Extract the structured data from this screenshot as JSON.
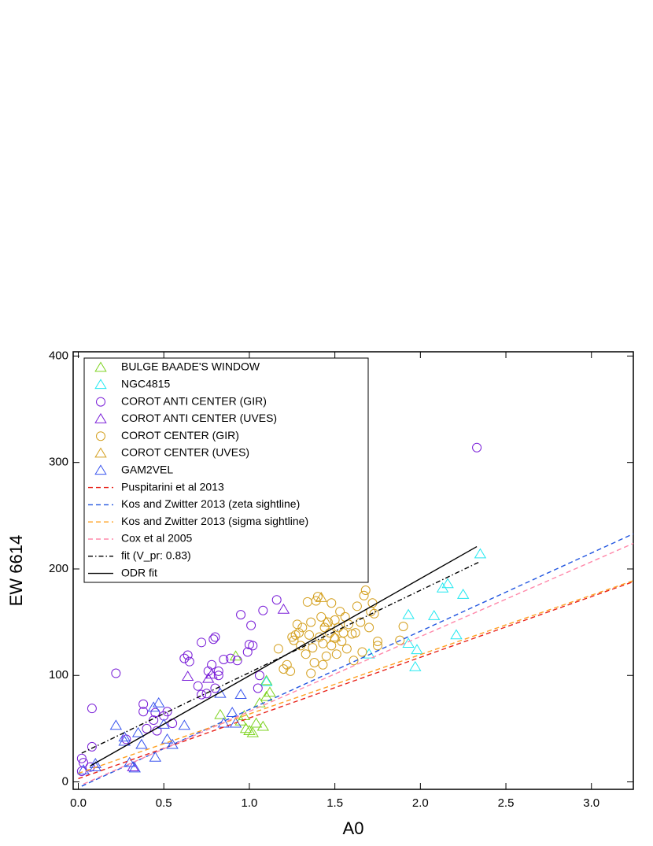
{
  "chart_data": {
    "type": "scatter",
    "xlabel": "A0",
    "ylabel": "EW 6614",
    "xlim": [
      -0.03,
      3.245
    ],
    "ylim": [
      -7,
      404
    ],
    "xticks": [
      {
        "value": 0,
        "label": "0.0"
      },
      0.5,
      {
        "value": 1,
        "label": "1.0"
      },
      1.5,
      {
        "value": 2,
        "label": "2.0"
      },
      2.5,
      {
        "value": 3,
        "label": "3.0"
      }
    ],
    "yticks": [
      0,
      100,
      200,
      300,
      400
    ],
    "legend": "upper left",
    "series": [
      {
        "name": "BULGE BAADE'S WINDOW",
        "color": "#7ed321",
        "marker": "triangle",
        "x": [
          0.83,
          0.92,
          0.97,
          0.98,
          1.0,
          1.02,
          1.04,
          1.06,
          1.08,
          1.1,
          1.12,
          1.1,
          0.95
        ],
        "values": [
          63,
          118,
          62,
          50,
          48,
          46,
          55,
          74,
          52,
          80,
          84,
          95,
          57
        ]
      },
      {
        "name": "NGC4815",
        "color": "#22e8f0",
        "marker": "triangle",
        "x": [
          1.1,
          1.7,
          1.93,
          1.97,
          1.98,
          2.08,
          2.13,
          2.16,
          2.21,
          2.25,
          2.35,
          1.93
        ],
        "values": [
          94,
          120,
          157,
          108,
          124,
          156,
          182,
          186,
          138,
          176,
          214,
          130
        ]
      },
      {
        "name": "COROT ANTI CENTER (GIR)",
        "color": "#7a1fd8",
        "marker": "circle",
        "x": [
          0.02,
          0.02,
          0.03,
          0.08,
          0.08,
          0.07,
          0.22,
          0.28,
          0.38,
          0.38,
          0.4,
          0.44,
          0.45,
          0.46,
          0.5,
          0.52,
          0.55,
          0.62,
          0.64,
          0.65,
          0.7,
          0.72,
          0.72,
          0.76,
          0.78,
          0.79,
          0.8,
          0.8,
          0.82,
          0.82,
          0.85,
          0.89,
          0.95,
          0.99,
          1.0,
          1.01,
          1.02,
          1.06,
          1.08,
          1.05,
          1.16,
          2.33,
          0.93,
          0.75
        ],
        "values": [
          22,
          10,
          18,
          69,
          33,
          14,
          102,
          40,
          73,
          66,
          50,
          58,
          65,
          48,
          62,
          66,
          55,
          116,
          119,
          113,
          90,
          131,
          82,
          104,
          110,
          134,
          136,
          88,
          100,
          104,
          115,
          116,
          157,
          122,
          129,
          147,
          128,
          100,
          161,
          88,
          171,
          314,
          114,
          83
        ]
      },
      {
        "name": "COROT ANTI CENTER (UVES)",
        "color": "#7a1fd8",
        "marker": "triangle",
        "x": [
          0.64,
          0.76,
          0.78,
          1.2,
          0.32
        ],
        "values": [
          99,
          97,
          101,
          162,
          14
        ]
      },
      {
        "name": "COROT CENTER (GIR)",
        "color": "#d4a020",
        "marker": "circle",
        "x": [
          1.17,
          1.2,
          1.22,
          1.24,
          1.25,
          1.26,
          1.28,
          1.29,
          1.3,
          1.31,
          1.33,
          1.34,
          1.35,
          1.36,
          1.37,
          1.38,
          1.39,
          1.4,
          1.41,
          1.42,
          1.43,
          1.44,
          1.45,
          1.46,
          1.47,
          1.48,
          1.48,
          1.5,
          1.5,
          1.51,
          1.52,
          1.53,
          1.54,
          1.55,
          1.57,
          1.58,
          1.6,
          1.61,
          1.62,
          1.63,
          1.65,
          1.66,
          1.67,
          1.68,
          1.7,
          1.71,
          1.72,
          1.73,
          1.75,
          1.75,
          1.88,
          1.9,
          1.27,
          1.43,
          1.56,
          1.36
        ],
        "values": [
          125,
          106,
          110,
          104,
          136,
          133,
          148,
          140,
          128,
          145,
          120,
          169,
          138,
          150,
          126,
          112,
          170,
          174,
          136,
          155,
          130,
          145,
          118,
          150,
          140,
          128,
          168,
          152,
          135,
          120,
          145,
          160,
          132,
          140,
          125,
          148,
          139,
          114,
          140,
          165,
          150,
          122,
          175,
          180,
          145,
          160,
          168,
          158,
          132,
          128,
          133,
          146,
          138,
          110,
          155,
          102
        ]
      },
      {
        "name": "COROT CENTER (UVES)",
        "color": "#d4a020",
        "marker": "triangle",
        "x": [
          1.42,
          1.45,
          1.5
        ],
        "values": [
          173,
          150,
          136
        ]
      },
      {
        "name": "GAM2VEL",
        "color": "#3a55ee",
        "marker": "triangle",
        "x": [
          0.03,
          0.1,
          0.1,
          0.22,
          0.27,
          0.3,
          0.33,
          0.35,
          0.37,
          0.45,
          0.47,
          0.5,
          0.52,
          0.55,
          0.62,
          0.83,
          0.85,
          0.9,
          0.92,
          0.95,
          0.27,
          0.44
        ],
        "values": [
          11,
          17,
          14,
          53,
          42,
          18,
          13,
          46,
          35,
          23,
          74,
          54,
          40,
          35,
          53,
          83,
          55,
          65,
          55,
          82,
          38,
          70
        ]
      },
      {
        "name": "Puspitarini et al 2013",
        "color": "#e8231b",
        "marker": "none",
        "dash": "dashed",
        "x": [
          0,
          3.245
        ],
        "values": [
          3,
          188
        ]
      },
      {
        "name": "Kos and Zwitter 2013 (zeta sightline)",
        "color": "#2256e0",
        "marker": "none",
        "dash": "dashed",
        "x": [
          0.02,
          3.245
        ],
        "values": [
          -4,
          233
        ]
      },
      {
        "name": "Kos and Zwitter 2013 (sigma sightline)",
        "color": "#ffa020",
        "marker": "none",
        "dash": "dashed",
        "x": [
          0,
          3.245
        ],
        "values": [
          8,
          189
        ]
      },
      {
        "name": "Cox et al 2005",
        "color": "#ff88aa",
        "marker": "none",
        "dash": "dashed",
        "x": [
          0.03,
          3.245
        ],
        "values": [
          -2,
          224
        ]
      },
      {
        "name": "fit (V_pr: 0.83)",
        "color": "#000000",
        "marker": "none",
        "dash": "dashdot",
        "x": [
          0.02,
          2.35
        ],
        "values": [
          27,
          207
        ]
      },
      {
        "name": "ODR fit",
        "color": "#000000",
        "marker": "none",
        "dash": "solid",
        "x": [
          0.07,
          2.33
        ],
        "values": [
          15,
          221
        ]
      }
    ]
  }
}
